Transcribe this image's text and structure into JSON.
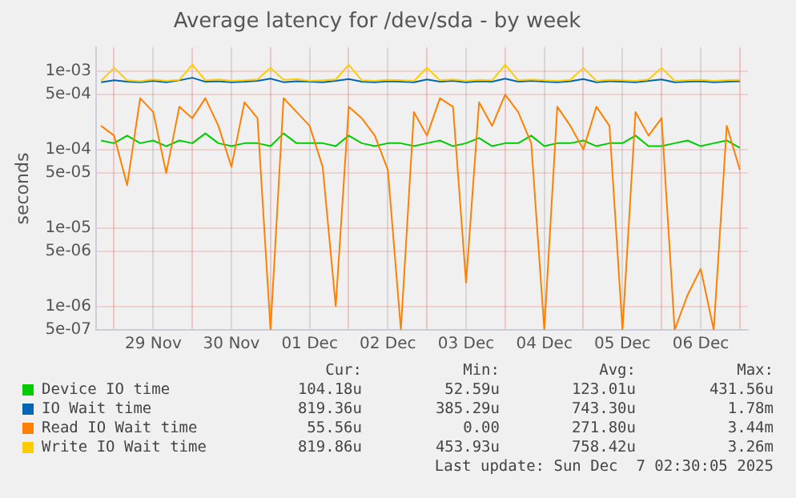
{
  "chart_data": {
    "type": "line",
    "title": "Average latency for /dev/sda - by week",
    "ylabel": "seconds",
    "log": true,
    "grid": true,
    "legend": "bottom",
    "marker": "none",
    "line_style": "solid",
    "x": [
      "2025-11-28T20:00",
      "2025-11-29T00:00",
      "2025-11-29T04:00",
      "2025-11-29T08:00",
      "2025-11-29T12:00",
      "2025-11-29T16:00",
      "2025-11-29T20:00",
      "2025-11-30T00:00",
      "2025-11-30T04:00",
      "2025-11-30T08:00",
      "2025-11-30T12:00",
      "2025-11-30T16:00",
      "2025-11-30T20:00",
      "2025-12-01T00:00",
      "2025-12-01T04:00",
      "2025-12-01T08:00",
      "2025-12-01T12:00",
      "2025-12-01T16:00",
      "2025-12-01T20:00",
      "2025-12-02T00:00",
      "2025-12-02T04:00",
      "2025-12-02T08:00",
      "2025-12-02T12:00",
      "2025-12-02T16:00",
      "2025-12-02T20:00",
      "2025-12-03T00:00",
      "2025-12-03T04:00",
      "2025-12-03T08:00",
      "2025-12-03T12:00",
      "2025-12-03T16:00",
      "2025-12-03T20:00",
      "2025-12-04T00:00",
      "2025-12-04T04:00",
      "2025-12-04T08:00",
      "2025-12-04T12:00",
      "2025-12-04T16:00",
      "2025-12-04T20:00",
      "2025-12-05T00:00",
      "2025-12-05T04:00",
      "2025-12-05T08:00",
      "2025-12-05T12:00",
      "2025-12-05T16:00",
      "2025-12-05T20:00",
      "2025-12-06T00:00",
      "2025-12-06T04:00",
      "2025-12-06T08:00",
      "2025-12-06T12:00",
      "2025-12-06T16:00",
      "2025-12-06T20:00",
      "2025-12-07T00:00"
    ],
    "xlim": [
      "2025-11-28T18:30",
      "2025-12-07T02:30"
    ],
    "xticks": [
      {
        "value": "2025-11-29T00:00",
        "label": null
      },
      {
        "value": "2025-11-29T12:00",
        "label": "29 Nov"
      },
      {
        "value": "2025-11-30T00:00",
        "label": null
      },
      {
        "value": "2025-11-30T12:00",
        "label": "30 Nov"
      },
      {
        "value": "2025-12-01T00:00",
        "label": null
      },
      {
        "value": "2025-12-01T12:00",
        "label": "01 Dec"
      },
      {
        "value": "2025-12-02T00:00",
        "label": null
      },
      {
        "value": "2025-12-02T12:00",
        "label": "02 Dec"
      },
      {
        "value": "2025-12-03T00:00",
        "label": null
      },
      {
        "value": "2025-12-03T12:00",
        "label": "03 Dec"
      },
      {
        "value": "2025-12-04T00:00",
        "label": null
      },
      {
        "value": "2025-12-04T12:00",
        "label": "04 Dec"
      },
      {
        "value": "2025-12-05T00:00",
        "label": null
      },
      {
        "value": "2025-12-05T12:00",
        "label": "05 Dec"
      },
      {
        "value": "2025-12-06T00:00",
        "label": null
      },
      {
        "value": "2025-12-06T12:00",
        "label": "06 Dec"
      },
      {
        "value": "2025-12-07T00:00",
        "label": null
      }
    ],
    "ylim": [
      5e-07,
      0.002
    ],
    "yticks": [
      {
        "value": 5e-07,
        "label": "5e-07"
      },
      {
        "value": 1e-06,
        "label": "1e-06"
      },
      {
        "value": 5e-06,
        "label": "5e-06"
      },
      {
        "value": 1e-05,
        "label": "1e-05"
      },
      {
        "value": 5e-05,
        "label": "5e-05"
      },
      {
        "value": 0.0001,
        "label": "1e-04"
      },
      {
        "value": 0.0005,
        "label": "5e-04"
      },
      {
        "value": 0.001,
        "label": "1e-03"
      }
    ],
    "series": [
      {
        "name": "Device IO time",
        "color": "#00cc00",
        "values": [
          0.00013,
          0.00012,
          0.00015,
          0.00012,
          0.00013,
          0.00011,
          0.00013,
          0.00012,
          0.00016,
          0.00012,
          0.00011,
          0.00012,
          0.00012,
          0.00011,
          0.00016,
          0.00012,
          0.00012,
          0.00012,
          0.00011,
          0.00015,
          0.00012,
          0.00011,
          0.00012,
          0.00012,
          0.00011,
          0.00012,
          0.00013,
          0.00011,
          0.00012,
          0.00014,
          0.00011,
          0.00012,
          0.00012,
          0.00015,
          0.00011,
          0.00012,
          0.00012,
          0.00013,
          0.00011,
          0.00012,
          0.00012,
          0.00015,
          0.00011,
          0.00011,
          0.00012,
          0.00013,
          0.00011,
          0.00012,
          0.00013,
          0.000105
        ]
      },
      {
        "name": "IO Wait time",
        "color": "#0066b3",
        "values": [
          0.00072,
          0.00076,
          0.00073,
          0.00072,
          0.00075,
          0.00072,
          0.00076,
          0.00082,
          0.00073,
          0.00074,
          0.00072,
          0.00073,
          0.00075,
          0.0008,
          0.00072,
          0.00074,
          0.00073,
          0.00072,
          0.00075,
          0.00079,
          0.00073,
          0.00072,
          0.00074,
          0.00073,
          0.00072,
          0.00078,
          0.00073,
          0.00075,
          0.00072,
          0.00074,
          0.00073,
          0.0008,
          0.00073,
          0.00075,
          0.00073,
          0.00072,
          0.00074,
          0.00079,
          0.00072,
          0.00074,
          0.00073,
          0.00072,
          0.00075,
          0.00078,
          0.00072,
          0.00073,
          0.00074,
          0.00072,
          0.00073,
          0.00074
        ]
      },
      {
        "name": "Read IO Wait time",
        "color": "#ff8000",
        "values": [
          0.0002,
          0.00015,
          3.5e-05,
          0.00045,
          0.0003,
          5e-05,
          0.00035,
          0.00025,
          0.00045,
          0.0002,
          6e-05,
          0.0004,
          0.00025,
          5e-07,
          0.00045,
          0.0003,
          0.0002,
          6e-05,
          1e-06,
          0.00035,
          0.00025,
          0.00015,
          5.5e-05,
          5e-07,
          0.0003,
          0.00015,
          0.00045,
          0.00035,
          2e-06,
          0.0004,
          0.0002,
          0.0005,
          0.0003,
          0.00012,
          5e-07,
          0.00035,
          0.0002,
          0.0001,
          0.00035,
          0.0002,
          5e-07,
          0.0003,
          0.00015,
          0.00025,
          5e-07,
          1.4e-06,
          3e-06,
          5e-07,
          0.0002,
          5.5e-05
        ]
      },
      {
        "name": "Write IO Wait time",
        "color": "#ffcc00",
        "values": [
          0.00075,
          0.0011,
          0.00076,
          0.00074,
          0.00078,
          0.00075,
          0.00077,
          0.0012,
          0.00076,
          0.00078,
          0.00075,
          0.00076,
          0.00078,
          0.0011,
          0.00077,
          0.00079,
          0.00075,
          0.00076,
          0.00078,
          0.0012,
          0.00076,
          0.00075,
          0.00077,
          0.00076,
          0.00075,
          0.0011,
          0.00076,
          0.00078,
          0.00075,
          0.00077,
          0.00076,
          0.0012,
          0.00076,
          0.00078,
          0.00076,
          0.00075,
          0.00077,
          0.0011,
          0.00075,
          0.00077,
          0.00076,
          0.00075,
          0.00078,
          0.0011,
          0.00075,
          0.00076,
          0.00077,
          0.00075,
          0.00076,
          0.00077
        ]
      }
    ],
    "annotations": [
      "Cur:",
      "Min:",
      "Avg:",
      "Max:",
      "104.18u",
      "52.59u",
      "123.01u",
      "431.56u",
      "819.36u",
      "385.29u",
      "743.30u",
      "1.78m",
      "55.56u",
      "0.00",
      "271.80u",
      "3.44m",
      "819.86u",
      "453.93u",
      "758.42u",
      "3.26m",
      "Last update: Sun Dec  7 02:30:05 2025"
    ]
  }
}
